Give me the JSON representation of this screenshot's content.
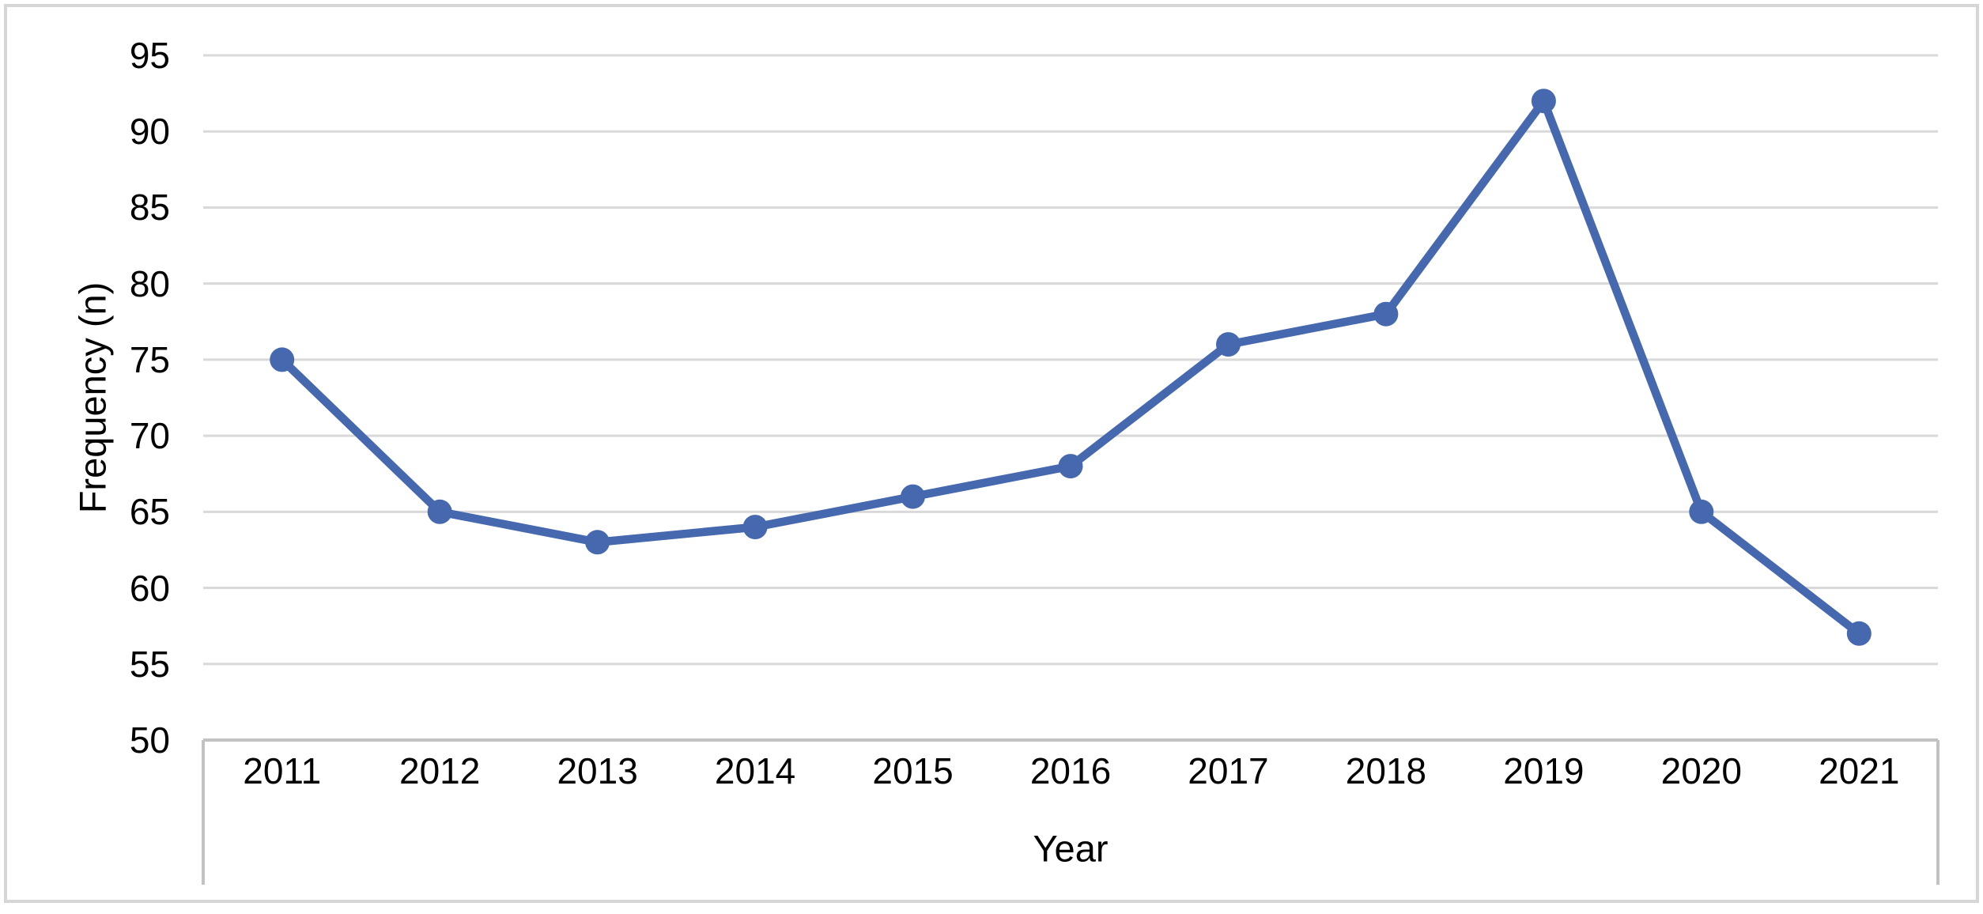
{
  "chart_data": {
    "type": "line",
    "title": "",
    "categories": [
      "2011",
      "2012",
      "2013",
      "2014",
      "2015",
      "2016",
      "2017",
      "2018",
      "2019",
      "2020",
      "2021"
    ],
    "series": [
      {
        "name": "Frequency",
        "values": [
          75,
          65,
          63,
          64,
          66,
          68,
          76,
          78,
          92,
          65,
          57
        ]
      }
    ],
    "xlabel": "Year",
    "ylabel": "Frequency (n)",
    "ylim": [
      50,
      95
    ],
    "y_ticks": [
      95,
      90,
      85,
      80,
      75,
      70,
      65,
      60,
      55,
      50
    ],
    "grid": "horizontal-only",
    "legend": "none",
    "marker": "circle",
    "line_color": "#4668AE",
    "marker_color": "#4668AE",
    "gridline_color": "#D9D9D9",
    "axis_line_color": "#C2C2C2",
    "frame_border_color": "#D6D6D6",
    "text_color": "#000000"
  }
}
